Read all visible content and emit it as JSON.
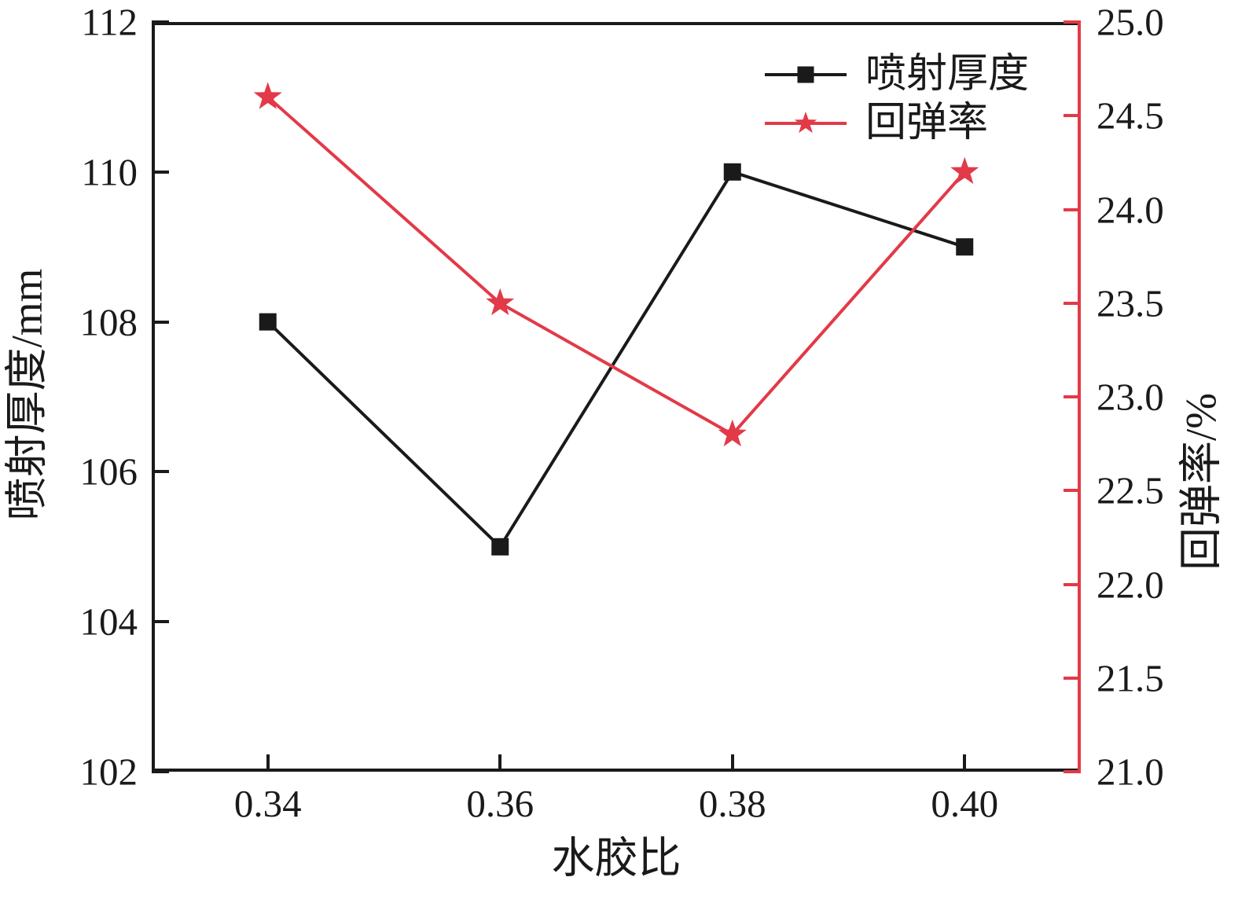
{
  "figure": {
    "background": "#ffffff",
    "ink_color": "#1a1a1a",
    "accent_red": "#e23a48"
  },
  "chart_data": {
    "type": "line",
    "grid": false,
    "x": [
      0.34,
      0.36,
      0.38,
      0.4
    ],
    "x_axis": {
      "label": "水胶比",
      "min": 0.33,
      "max": 0.41,
      "tick_values": [
        0.34,
        0.36,
        0.38,
        0.4
      ],
      "tick_labels": [
        "0.34",
        "0.36",
        "0.38",
        "0.40"
      ]
    },
    "y_left_axis": {
      "label": "喷射厚度/mm",
      "min": 102,
      "max": 112,
      "tick_values": [
        112,
        110,
        108,
        106,
        104,
        102
      ],
      "tick_labels": [
        "112",
        "110",
        "108",
        "106",
        "104",
        "102"
      ]
    },
    "y_right_axis": {
      "label": "回弹率/%",
      "min": 21.0,
      "max": 25.0,
      "tick_values": [
        25.0,
        24.5,
        24.0,
        23.5,
        23.0,
        22.5,
        22.0,
        21.5,
        21.0
      ],
      "tick_labels": [
        "25.0",
        "24.5",
        "24.0",
        "23.5",
        "23.0",
        "22.5",
        "22.0",
        "21.5",
        "21.0"
      ]
    },
    "series": [
      {
        "name": "喷射厚度",
        "axis": "left",
        "color": "#1a1a1a",
        "marker": "square",
        "values": [
          108,
          105,
          110,
          109
        ]
      },
      {
        "name": "回弹率",
        "axis": "right",
        "color": "#e23a48",
        "marker": "star",
        "values": [
          24.6,
          23.5,
          22.8,
          24.2
        ]
      }
    ],
    "legend": {
      "position": "top-right",
      "frame": false,
      "entries": [
        "喷射厚度",
        "回弹率"
      ]
    }
  }
}
